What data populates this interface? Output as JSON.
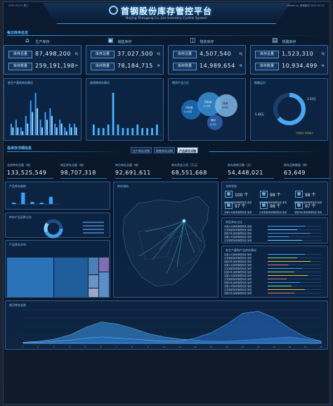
{
  "header": {
    "title": "首钢股份库存管控平台",
    "subtitle": "Beijing Shougang Co.,Ltd Inventory Control System",
    "left_info": "2021-09-11 周三",
    "right_info": "Hosted by 首钢股份 2021.09.11"
  },
  "sections": {
    "daily": "每日库存总览",
    "detail": "各库存详细信息"
  },
  "kpis": [
    {
      "title": "生产库存",
      "icon": "factory-icon",
      "row1_label": "库存总量",
      "row1_value": "87,498,200",
      "row1_unit": "吨",
      "row2_label": "库存数量",
      "row2_value": "259,191,198",
      "row2_unit": "件"
    },
    {
      "title": "销售库存",
      "icon": "gift-icon",
      "row1_label": "库存总量",
      "row1_value": "37,027,500",
      "row1_unit": "吨",
      "row2_label": "库存数量",
      "row2_value": "78,184,715",
      "row2_unit": "件"
    },
    {
      "title": "物资库存",
      "icon": "cart-icon",
      "row1_label": "库存总量",
      "row1_value": "4,507,540",
      "row1_unit": "吨",
      "row2_label": "库存数量",
      "row2_value": "14,989,654",
      "row2_unit": "件"
    },
    {
      "title": "铁路库存",
      "icon": "train-icon",
      "row1_label": "库存总量",
      "row1_value": "1,523,310",
      "row1_unit": "吨",
      "row2_label": "库存数量",
      "row2_value": "10,934,499",
      "row2_unit": "件"
    }
  ],
  "panels_top": [
    {
      "title": "各生产基地库存情况"
    },
    {
      "title": "各销售库存情况"
    },
    {
      "title": "物资产品占比"
    },
    {
      "title": "铁路运力"
    }
  ],
  "bubbles": {
    "items": [
      {
        "label": "冷轧板",
        "value": "5.45万"
      },
      {
        "label": "热轧板",
        "value": "4.3万"
      },
      {
        "label": "硅钢",
        "value": "4.6万"
      },
      {
        "label": "卷材",
        "value": "4.1万"
      }
    ]
  },
  "donut_top": {
    "left_value": "5.48万",
    "right_value": "3.24万",
    "legend": "已用运力 未用运力"
  },
  "tabs": [
    "生产库存详情",
    "销售库存详情",
    "产品库存详情"
  ],
  "stats": [
    {
      "title": "仓库库存总量（吨）",
      "value": "133,525,549"
    },
    {
      "title": "库区库存总量（吨）",
      "value": "98,707,318"
    },
    {
      "title": "库位库存总量（吨）",
      "value": "92,691,611"
    },
    {
      "title": "库存资金占用（万元）",
      "value": "68,551,668"
    },
    {
      "title": "库存周转天数（天）",
      "value": "54,448,021"
    },
    {
      "title": "库存品种数量（种）",
      "value": "63,649"
    }
  ],
  "left_panels": [
    {
      "title": "产品库存结构"
    },
    {
      "title": "库存产品品种占比"
    },
    {
      "title": "产品库存分布"
    }
  ],
  "map": {
    "title": "库存流向"
  },
  "warehouses": {
    "title": "仓库状态",
    "items": [
      {
        "value": "100 个"
      },
      {
        "value": "98 个"
      },
      {
        "value": "98 个"
      },
      {
        "value": "97 个"
      },
      {
        "value": "98 个"
      },
      {
        "value": "97 个"
      }
    ]
  },
  "table_labels": [
    "京唐公司库房管理系统 库房",
    "迁安钢铁库房管理系统 库房",
    "首钢冷轧库房管理系统 库房"
  ],
  "right_panels": [
    {
      "title": "库区库存占比"
    },
    {
      "title": "各生产基地产品库存情况"
    }
  ],
  "bottom": {
    "title": "各月库存走势"
  },
  "colors": {
    "accent": "#2e9cf0",
    "bg": "#0b1a30",
    "highlight": "#8fd0ff"
  },
  "chart_data": [
    {
      "type": "bar",
      "title": "各生产基地库存情况",
      "categories": [
        "1",
        "2",
        "3",
        "4",
        "5",
        "6",
        "7",
        "8",
        "9",
        "10",
        "11",
        "12",
        "13",
        "14"
      ],
      "series": [
        {
          "values": [
            3,
            4,
            2,
            5,
            9,
            11,
            4,
            6,
            7,
            3,
            4,
            2,
            3,
            3
          ]
        },
        {
          "values": [
            2,
            2,
            1,
            3,
            6,
            7,
            2,
            4,
            5,
            2,
            3,
            1,
            2,
            2
          ]
        }
      ]
    },
    {
      "type": "bar",
      "title": "各销售库存情况",
      "categories": [
        "1",
        "2",
        "3",
        "4",
        "5",
        "6",
        "7",
        "8",
        "9",
        "10",
        "11",
        "12",
        "13",
        "14"
      ],
      "values": [
        3,
        2,
        2,
        3,
        12,
        3,
        2,
        2,
        2,
        3,
        2,
        2,
        2,
        3
      ]
    },
    {
      "type": "bar",
      "title": "产品库存结构",
      "categories": [
        "1",
        "2",
        "3",
        "4",
        "5"
      ],
      "values": [
        2,
        16,
        3,
        2,
        10
      ]
    },
    {
      "type": "area",
      "title": "各月库存走势",
      "x": [
        "1",
        "2",
        "3",
        "4",
        "5",
        "6",
        "7",
        "8",
        "9",
        "10",
        "11",
        "12",
        "13",
        "14",
        "15",
        "16",
        "17",
        "18",
        "19",
        "20"
      ],
      "series": [
        {
          "values": [
            1,
            2,
            4,
            8,
            15,
            20,
            18,
            14,
            9,
            6,
            4,
            3,
            2,
            2,
            3,
            4,
            5,
            6,
            4,
            2
          ]
        },
        {
          "values": [
            1,
            1,
            2,
            3,
            5,
            6,
            5,
            4,
            3,
            2,
            2,
            5,
            10,
            18,
            28,
            30,
            24,
            14,
            6,
            2
          ]
        }
      ]
    }
  ]
}
